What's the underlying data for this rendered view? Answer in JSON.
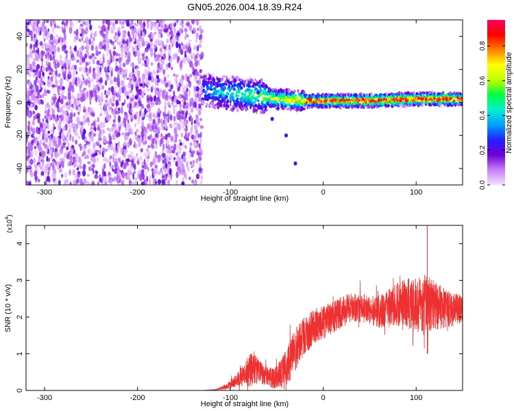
{
  "figure_title": "GN05.2026.004.18.39.R24",
  "chart_data": [
    {
      "type": "heatmap",
      "name": "spectrogram",
      "xlabel": "Height of straight line (km)",
      "ylabel": "Frequency (Hz)",
      "xlim": [
        -320,
        150
      ],
      "ylim": [
        -50,
        50
      ],
      "xticks": [
        -300,
        -200,
        -100,
        0,
        100
      ],
      "yticks": [
        -40,
        -20,
        0,
        20,
        40
      ],
      "colorbar": {
        "label": "Normalized spectral amplitude",
        "range": [
          0,
          0.95
        ],
        "ticks": [
          0.0,
          0.2,
          0.4,
          0.6,
          0.8
        ],
        "tick_labels": [
          "0.0",
          "0.2",
          "0.4",
          "0.6",
          "0.8"
        ],
        "colors": [
          "#f0e0ff",
          "#c880f8",
          "#7000d8",
          "#2020ff",
          "#00a0ff",
          "#00f0d0",
          "#00ff40",
          "#c0ff00",
          "#ffff00",
          "#ff8000",
          "#ff0000",
          "#ff0060"
        ]
      },
      "features": {
        "noise_region_x": [
          -320,
          -130
        ],
        "noise_amplitude": 0.15,
        "signal_centerline_knots": [
          [
            -130,
            8
          ],
          [
            -110,
            6
          ],
          [
            -90,
            5
          ],
          [
            -70,
            4
          ],
          [
            -50,
            2
          ],
          [
            -20,
            1
          ],
          [
            0,
            1
          ],
          [
            50,
            1
          ],
          [
            100,
            2
          ],
          [
            150,
            2
          ]
        ],
        "signal_peak_amplitude": 0.9,
        "feature_points": [
          [
            -80,
            10
          ],
          [
            -70,
            6
          ],
          [
            -55,
            -10
          ],
          [
            -40,
            -20
          ],
          [
            -30,
            -37
          ]
        ]
      }
    },
    {
      "type": "line",
      "name": "snr",
      "xlabel": "Height of straight line (km)",
      "ylabel": "SNR (10 * v/v)",
      "multiplier": "(x10",
      "multiplier_exp": "4",
      "multiplier_close": ")",
      "xlim": [
        -320,
        150
      ],
      "ylim": [
        0,
        4.5
      ],
      "xticks": [
        -300,
        -200,
        -100,
        0,
        100
      ],
      "yticks": [
        0,
        1,
        2,
        3,
        4
      ],
      "color": "#ee3030",
      "envelope": {
        "x": [
          -320,
          -130,
          -115,
          -105,
          -95,
          -85,
          -80,
          -75,
          -70,
          -65,
          -60,
          -55,
          -50,
          -45,
          -40,
          -35,
          -30,
          -25,
          -20,
          -15,
          -10,
          -5,
          0,
          10,
          20,
          30,
          40,
          50,
          60,
          70,
          80,
          90,
          100,
          110,
          120,
          130,
          140,
          150
        ],
        "mean": [
          0.0,
          0.0,
          0.02,
          0.1,
          0.25,
          0.45,
          0.55,
          0.6,
          0.5,
          0.45,
          0.4,
          0.35,
          0.35,
          0.5,
          0.6,
          0.9,
          1.1,
          1.35,
          1.5,
          1.6,
          1.75,
          1.8,
          1.85,
          2.0,
          2.15,
          2.25,
          2.25,
          2.2,
          2.15,
          2.25,
          2.35,
          2.4,
          2.3,
          2.35,
          2.3,
          2.25,
          2.2,
          2.25
        ],
        "spread": [
          0.0,
          0.0,
          0.01,
          0.08,
          0.15,
          0.3,
          0.45,
          0.5,
          0.35,
          0.3,
          0.25,
          0.3,
          0.3,
          0.45,
          0.5,
          0.55,
          0.6,
          0.55,
          0.55,
          0.5,
          0.5,
          0.45,
          0.45,
          0.45,
          0.45,
          0.4,
          0.4,
          0.4,
          0.45,
          0.5,
          0.6,
          0.7,
          0.75,
          0.85,
          0.7,
          0.55,
          0.45,
          0.4
        ]
      },
      "annotation_peak": {
        "x": 112,
        "y": 4.5
      }
    }
  ]
}
